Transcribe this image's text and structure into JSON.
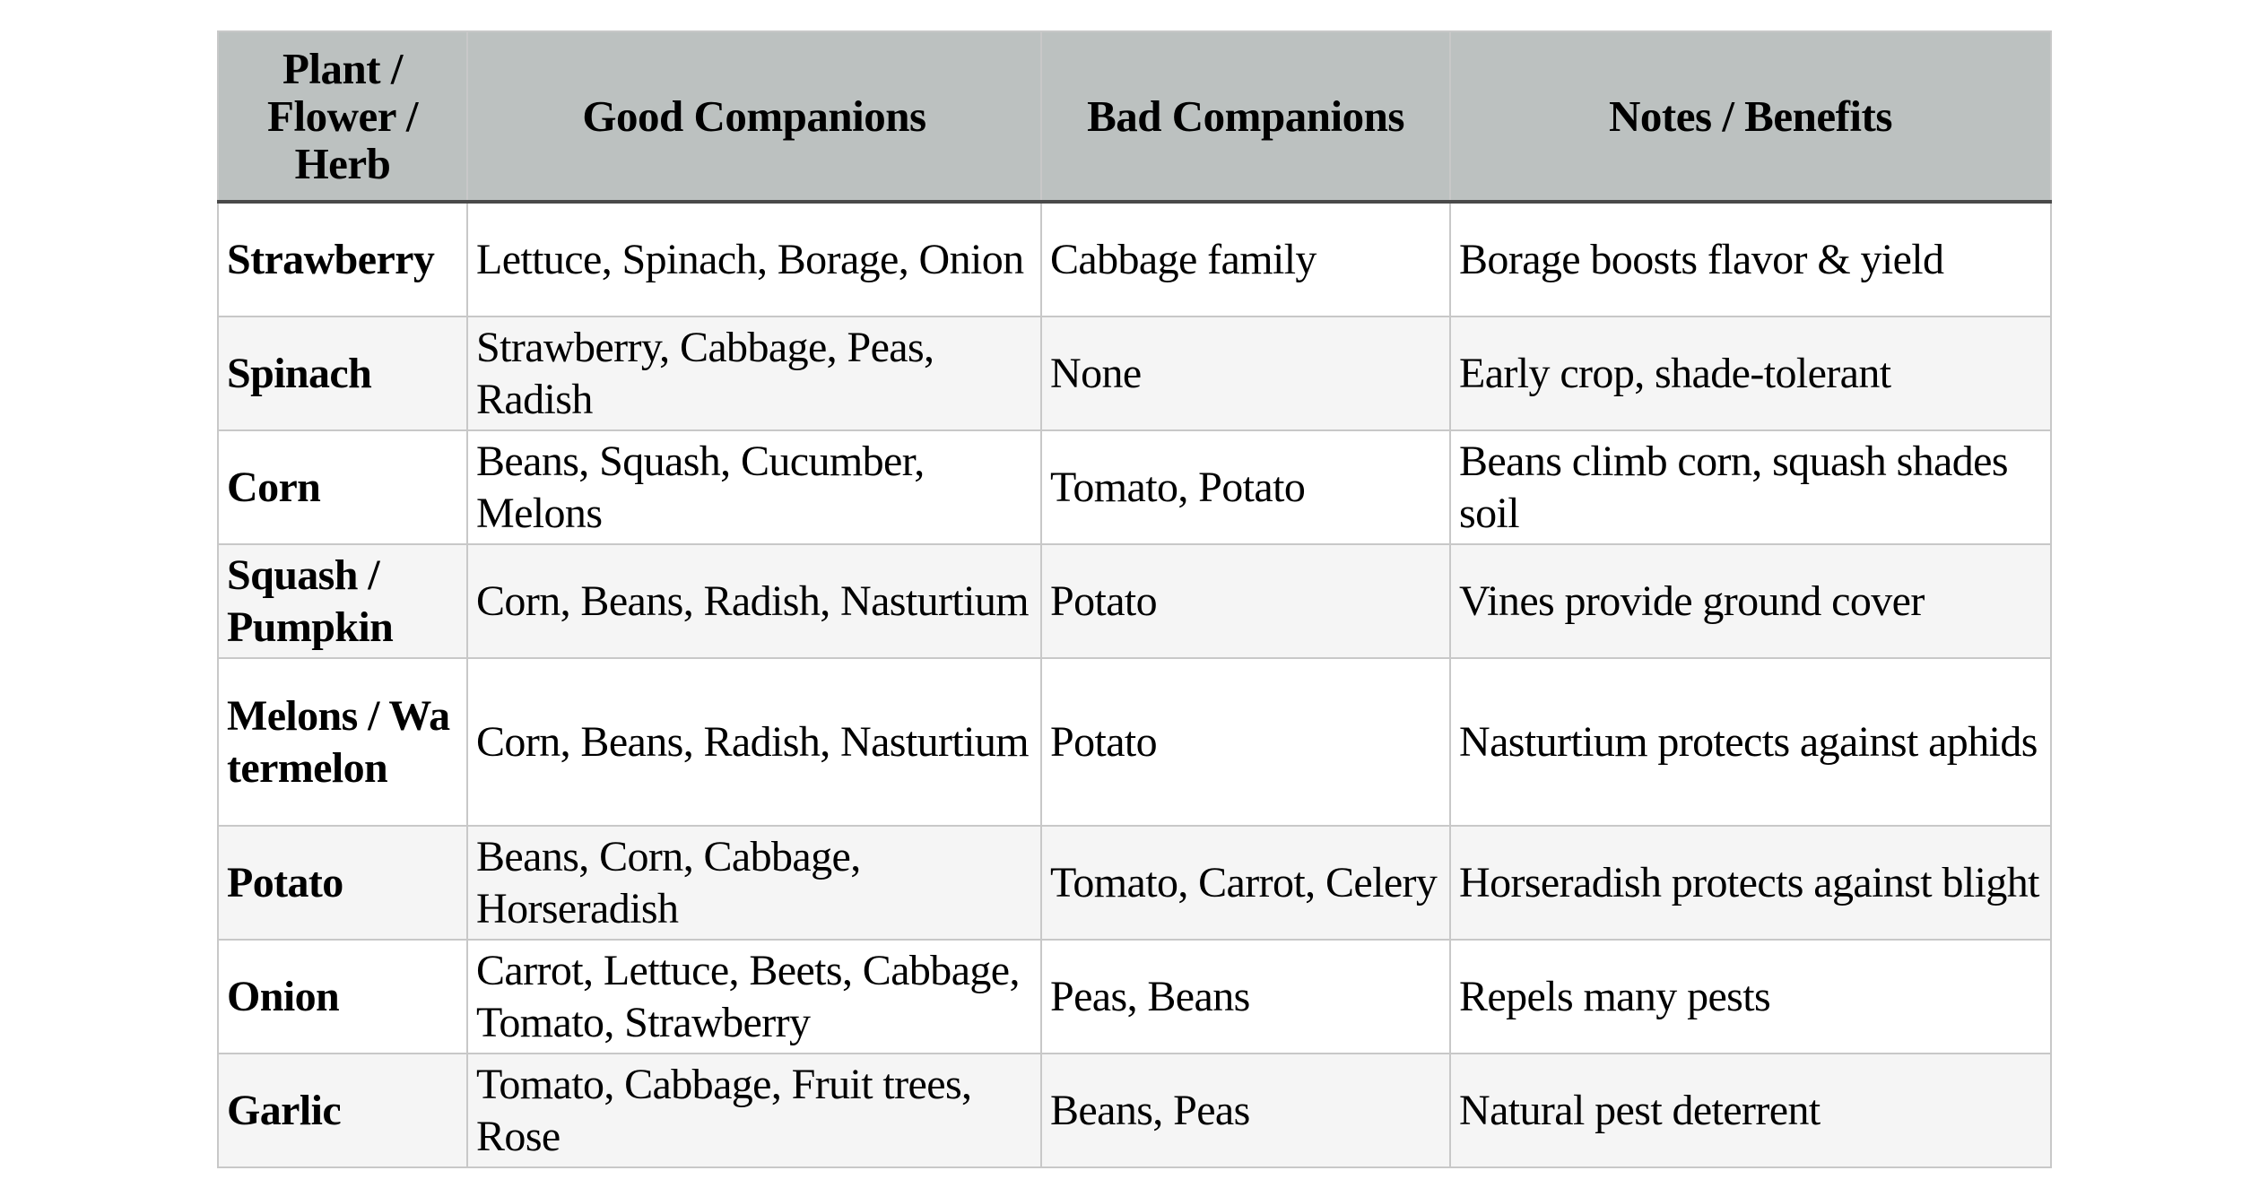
{
  "table": {
    "headers": [
      "Plant / Flower / Herb",
      "Good Companions",
      "Bad Companions",
      "Notes / Benefits"
    ],
    "rows": [
      {
        "plant": "Strawberry",
        "good": "Lettuce, Spinach, Borage, Onion",
        "bad": "Cabbage family",
        "notes": "Borage boosts flavor & yield"
      },
      {
        "plant": "Spinach",
        "good": "Strawberry, Cabbage, Peas, Radish",
        "bad": "None",
        "notes": "Early crop, shade-tolerant"
      },
      {
        "plant": "Corn",
        "good": "Beans, Squash, Cucumber, Melons",
        "bad": "Tomato, Potato",
        "notes": "Beans climb corn, squash shades soil"
      },
      {
        "plant": "Squash / Pumpkin",
        "good": "Corn, Beans, Radish, Nasturtium",
        "bad": "Potato",
        "notes": "Vines provide ground cover"
      },
      {
        "plant": "Melons / Watermelon",
        "good": "Corn, Beans, Radish, Nasturtium",
        "bad": "Potato",
        "notes": "Nasturtium protects against aphids"
      },
      {
        "plant": "Potato",
        "good": "Beans, Corn, Cabbage, Horseradish",
        "bad": "Tomato, Carrot, Celery",
        "notes": "Horseradish protects against blight"
      },
      {
        "plant": "Onion",
        "good": "Carrot, Lettuce, Beets, Cabbage, Tomato, Strawberry",
        "bad": "Peas, Beans",
        "notes": "Repels many pests"
      },
      {
        "plant": "Garlic",
        "good": "Tomato, Cabbage, Fruit trees, Rose",
        "bad": "Beans, Peas",
        "notes": "Natural pest deterrent"
      }
    ]
  },
  "colors": {
    "header_bg": "#bcc1c0",
    "alt_row_bg": "#f5f5f5",
    "border": "#c8c8c8",
    "header_rule": "#4a4a4a"
  }
}
